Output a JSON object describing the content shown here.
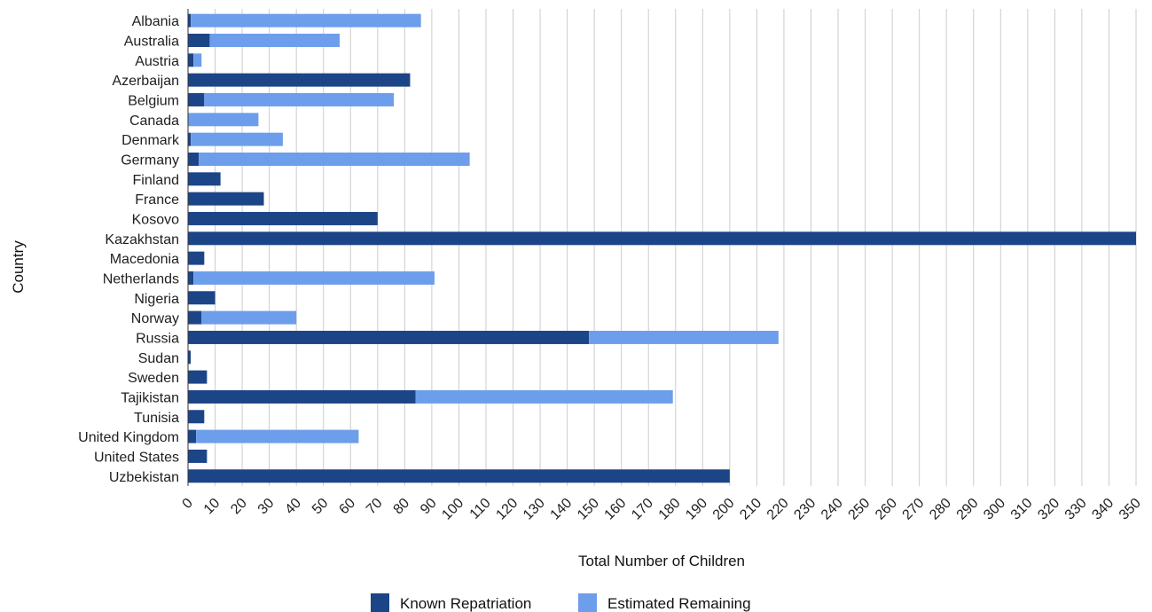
{
  "chart_data": {
    "type": "bar",
    "orientation": "horizontal",
    "stacked": true,
    "title": "",
    "xlabel": "Total Number of Children",
    "ylabel": "Country",
    "xlim": [
      0,
      350
    ],
    "x_tick_step": 10,
    "grid": true,
    "legend_position": "bottom",
    "categories": [
      "Albania",
      "Australia",
      "Austria",
      "Azerbaijan",
      "Belgium",
      "Canada",
      "Denmark",
      "Germany",
      "Finland",
      "France",
      "Kosovo",
      "Kazakhstan",
      "Macedonia",
      "Netherlands",
      "Nigeria",
      "Norway",
      "Russia",
      "Sudan",
      "Sweden",
      "Tajikistan",
      "Tunisia",
      "United Kingdom",
      "United States",
      "Uzbekistan"
    ],
    "series": [
      {
        "name": "Known Repatriation",
        "color": "#1c4587",
        "values": [
          1,
          8,
          2,
          82,
          6,
          0,
          1,
          4,
          12,
          28,
          70,
          350,
          6,
          2,
          10,
          5,
          148,
          1,
          7,
          84,
          6,
          3,
          7,
          200
        ]
      },
      {
        "name": "Estimated Remaining",
        "color": "#6d9eeb",
        "values": [
          85,
          48,
          3,
          0,
          70,
          26,
          34,
          100,
          0,
          0,
          0,
          0,
          0,
          89,
          0,
          35,
          70,
          0,
          0,
          95,
          0,
          60,
          0,
          0
        ]
      }
    ]
  }
}
